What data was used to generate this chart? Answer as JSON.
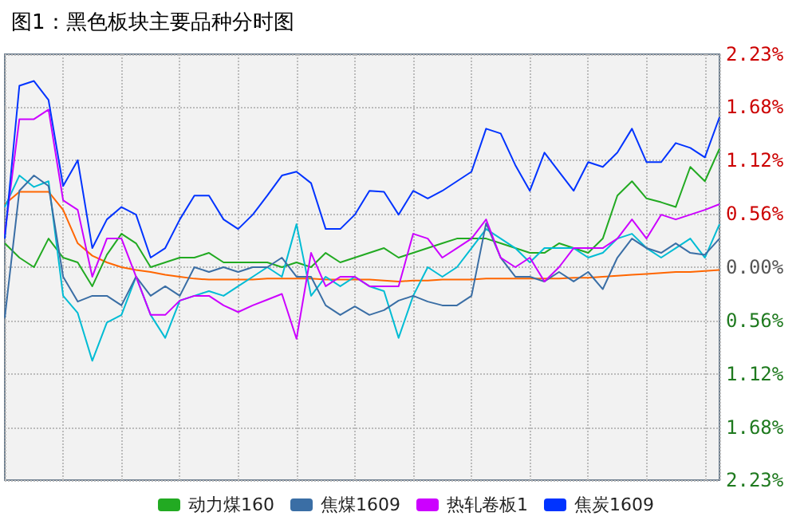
{
  "chart_data": {
    "type": "line",
    "title": "图1：黑色板块主要品种分时图",
    "categories": [
      null,
      null,
      null,
      null,
      null,
      null,
      null,
      null,
      null,
      null,
      null,
      null,
      null,
      null,
      null,
      null,
      null,
      null,
      null,
      null,
      null,
      null,
      null,
      null,
      null,
      null,
      null,
      null,
      null,
      null,
      null,
      null,
      null,
      null,
      null,
      null,
      null,
      null,
      null,
      null,
      null,
      null,
      null,
      null,
      null,
      null,
      null,
      null,
      null,
      null
    ],
    "series": [
      {
        "color": "#ff6600",
        "values": [
          0.66,
          0.79,
          0.79,
          0.79,
          0.6,
          0.25,
          0.12,
          0.05,
          0.0,
          -0.03,
          -0.05,
          -0.08,
          -0.1,
          -0.12,
          -0.13,
          -0.13,
          -0.13,
          -0.13,
          -0.12,
          -0.12,
          -0.12,
          -0.12,
          -0.13,
          -0.13,
          -0.13,
          -0.13,
          -0.14,
          -0.15,
          -0.14,
          -0.14,
          -0.13,
          -0.13,
          -0.13,
          -0.12,
          -0.12,
          -0.12,
          -0.12,
          -0.12,
          -0.12,
          -0.11,
          -0.11,
          -0.1,
          -0.09,
          -0.08,
          -0.07,
          -0.06,
          -0.05,
          -0.05,
          -0.04,
          -0.03
        ]
      },
      {
        "name": "动力煤160",
        "color": "#22aa22",
        "values": [
          0.25,
          0.1,
          0.0,
          0.3,
          0.1,
          0.05,
          -0.2,
          0.13,
          0.35,
          0.25,
          0.0,
          0.05,
          0.1,
          0.1,
          0.15,
          0.05,
          0.05,
          0.05,
          0.05,
          0.0,
          0.05,
          0.0,
          0.15,
          0.05,
          0.1,
          0.15,
          0.2,
          0.1,
          0.15,
          0.2,
          0.25,
          0.3,
          0.3,
          0.3,
          0.25,
          0.2,
          0.15,
          0.15,
          0.25,
          0.2,
          0.15,
          0.3,
          0.75,
          0.9,
          0.72,
          0.68,
          0.63,
          1.05,
          0.9,
          1.24
        ]
      },
      {
        "color": "#00bcd4",
        "values": [
          0.63,
          0.96,
          0.84,
          0.9,
          -0.3,
          -0.48,
          -0.98,
          -0.58,
          -0.5,
          -0.1,
          -0.5,
          -0.74,
          -0.35,
          -0.3,
          -0.25,
          -0.3,
          -0.2,
          -0.1,
          0.0,
          -0.1,
          0.45,
          -0.3,
          -0.1,
          -0.2,
          -0.1,
          -0.2,
          -0.25,
          -0.74,
          -0.3,
          0.0,
          -0.1,
          0.0,
          0.2,
          0.4,
          0.3,
          0.2,
          0.05,
          0.2,
          0.2,
          0.2,
          0.1,
          0.15,
          0.3,
          0.35,
          0.2,
          0.1,
          0.2,
          0.3,
          0.1,
          0.45
        ]
      },
      {
        "name": "焦煤1609",
        "color": "#3a6ea5",
        "values": [
          -0.53,
          0.8,
          0.96,
          0.85,
          -0.1,
          -0.36,
          -0.3,
          -0.3,
          -0.4,
          -0.1,
          -0.3,
          -0.2,
          -0.3,
          0.0,
          -0.05,
          0.0,
          -0.05,
          0.0,
          0.0,
          0.1,
          -0.1,
          -0.1,
          -0.4,
          -0.5,
          -0.41,
          -0.5,
          -0.45,
          -0.35,
          -0.3,
          -0.36,
          -0.4,
          -0.4,
          -0.3,
          0.46,
          0.1,
          -0.1,
          -0.1,
          -0.15,
          -0.05,
          -0.15,
          -0.05,
          -0.23,
          0.1,
          0.3,
          0.2,
          0.15,
          0.25,
          0.15,
          0.13,
          0.3
        ]
      },
      {
        "name": "热轧卷板1",
        "color": "#cc00ff",
        "values": [
          0.35,
          1.55,
          1.55,
          1.65,
          0.7,
          0.6,
          -0.1,
          0.3,
          0.3,
          -0.1,
          -0.5,
          -0.5,
          -0.35,
          -0.3,
          -0.3,
          -0.4,
          -0.47,
          -0.4,
          -0.34,
          -0.28,
          -0.75,
          0.15,
          -0.2,
          -0.1,
          -0.1,
          -0.2,
          -0.2,
          -0.2,
          0.35,
          0.3,
          0.1,
          0.2,
          0.3,
          0.5,
          0.1,
          0.0,
          0.1,
          -0.15,
          0.0,
          0.2,
          0.2,
          0.2,
          0.3,
          0.5,
          0.3,
          0.55,
          0.5,
          0.55,
          0.6,
          0.66
        ]
      },
      {
        "name": "焦炭1609",
        "color": "#0033ff",
        "values": [
          0.3,
          1.9,
          1.95,
          1.75,
          0.85,
          1.12,
          0.2,
          0.5,
          0.63,
          0.55,
          0.1,
          0.2,
          0.5,
          0.75,
          0.75,
          0.5,
          0.4,
          0.55,
          0.75,
          0.96,
          1.0,
          0.88,
          0.4,
          0.4,
          0.55,
          0.8,
          0.79,
          0.55,
          0.8,
          0.72,
          0.8,
          0.9,
          1.0,
          1.45,
          1.4,
          1.07,
          0.8,
          1.2,
          1.0,
          0.8,
          1.1,
          1.05,
          1.2,
          1.45,
          1.1,
          1.1,
          1.3,
          1.25,
          1.15,
          1.57
        ]
      }
    ],
    "ylim": [
      -2.23,
      2.23
    ],
    "yticks": [
      {
        "value": -2.23,
        "label": "2.23%"
      },
      {
        "value": -1.68,
        "label": "1.68%"
      },
      {
        "value": -1.12,
        "label": "1.12%"
      },
      {
        "value": -0.56,
        "label": "0.56%"
      },
      {
        "value": 0,
        "label": "0.00%"
      },
      {
        "value": 0.56,
        "label": "0.56%"
      },
      {
        "value": 1.12,
        "label": "1.12%"
      },
      {
        "value": 1.68,
        "label": "1.68%"
      },
      {
        "value": 2.23,
        "label": "2.23%"
      }
    ],
    "tick_labels": "y",
    "grid": true,
    "legend": "bottom",
    "line_style": "solid"
  }
}
